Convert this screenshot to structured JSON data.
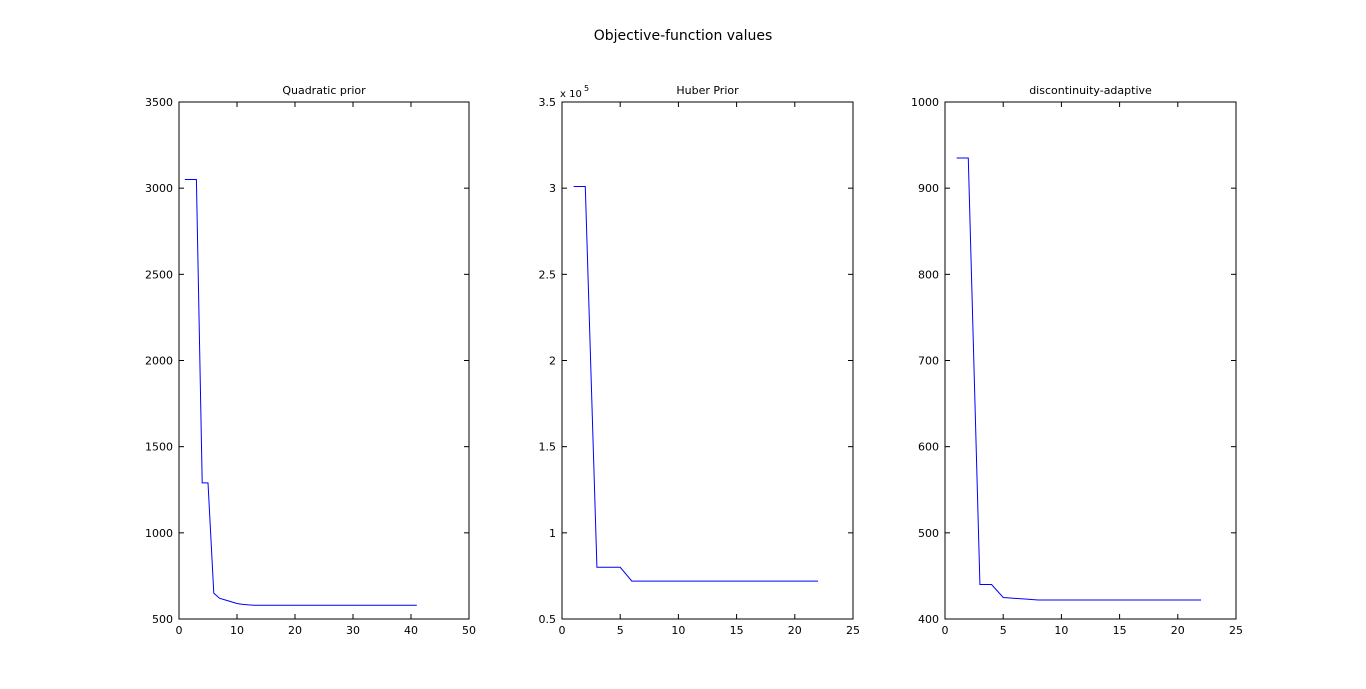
{
  "figure": {
    "suptitle": "Objective-function values"
  },
  "chart_data": [
    {
      "type": "line",
      "title": "Quadratic prior",
      "xlabel": "",
      "ylabel": "",
      "xlim": [
        0,
        50
      ],
      "ylim": [
        500,
        3500
      ],
      "xticks": [
        0,
        10,
        20,
        30,
        40,
        50
      ],
      "yticks": [
        500,
        1000,
        1500,
        2000,
        2500,
        3000,
        3500
      ],
      "exponent_label": "",
      "grid": false,
      "line_color": "#0000ff",
      "series": [
        {
          "x": [
            1,
            2,
            3,
            4,
            5,
            6,
            7,
            8,
            9,
            10,
            11,
            12,
            13,
            14,
            15,
            16,
            17,
            18,
            19,
            20,
            21,
            22,
            23,
            24,
            25,
            26,
            27,
            28,
            29,
            30,
            31,
            32,
            33,
            34,
            35,
            36,
            37,
            38,
            39,
            40,
            41
          ],
          "y": [
            3050,
            3050,
            3050,
            1290,
            1290,
            650,
            620,
            610,
            600,
            590,
            585,
            582,
            580,
            580,
            580,
            580,
            580,
            580,
            580,
            580,
            580,
            580,
            580,
            580,
            580,
            580,
            580,
            580,
            580,
            580,
            580,
            580,
            580,
            580,
            580,
            580,
            580,
            580,
            580,
            580,
            580
          ]
        }
      ]
    },
    {
      "type": "line",
      "title": "Huber Prior",
      "xlabel": "",
      "ylabel": "",
      "xlim": [
        0,
        25
      ],
      "ylim": [
        0.5,
        3.5
      ],
      "xticks": [
        0,
        5,
        10,
        15,
        20,
        25
      ],
      "yticks": [
        0.5,
        1,
        1.5,
        2,
        2.5,
        3,
        3.5
      ],
      "exponent_label": "x 10",
      "exponent_power": "5",
      "grid": false,
      "line_color": "#0000ff",
      "series": [
        {
          "x": [
            1,
            2,
            3,
            4,
            5,
            6,
            7,
            8,
            9,
            10,
            11,
            12,
            13,
            14,
            15,
            16,
            17,
            18,
            19,
            20,
            21,
            22
          ],
          "y": [
            3.01,
            3.01,
            0.8,
            0.8,
            0.8,
            0.72,
            0.72,
            0.72,
            0.72,
            0.72,
            0.72,
            0.72,
            0.72,
            0.72,
            0.72,
            0.72,
            0.72,
            0.72,
            0.72,
            0.72,
            0.72,
            0.72
          ]
        }
      ]
    },
    {
      "type": "line",
      "title": "discontinuity-adaptive",
      "xlabel": "",
      "ylabel": "",
      "xlim": [
        0,
        25
      ],
      "ylim": [
        400,
        1000
      ],
      "xticks": [
        0,
        5,
        10,
        15,
        20,
        25
      ],
      "yticks": [
        400,
        500,
        600,
        700,
        800,
        900,
        1000
      ],
      "exponent_label": "",
      "grid": false,
      "line_color": "#0000ff",
      "series": [
        {
          "x": [
            1,
            2,
            3,
            4,
            5,
            6,
            7,
            8,
            9,
            10,
            11,
            12,
            13,
            14,
            15,
            16,
            17,
            18,
            19,
            20,
            21,
            22
          ],
          "y": [
            935,
            935,
            440,
            440,
            425,
            424,
            423,
            422,
            422,
            422,
            422,
            422,
            422,
            422,
            422,
            422,
            422,
            422,
            422,
            422,
            422,
            422
          ]
        }
      ]
    }
  ]
}
